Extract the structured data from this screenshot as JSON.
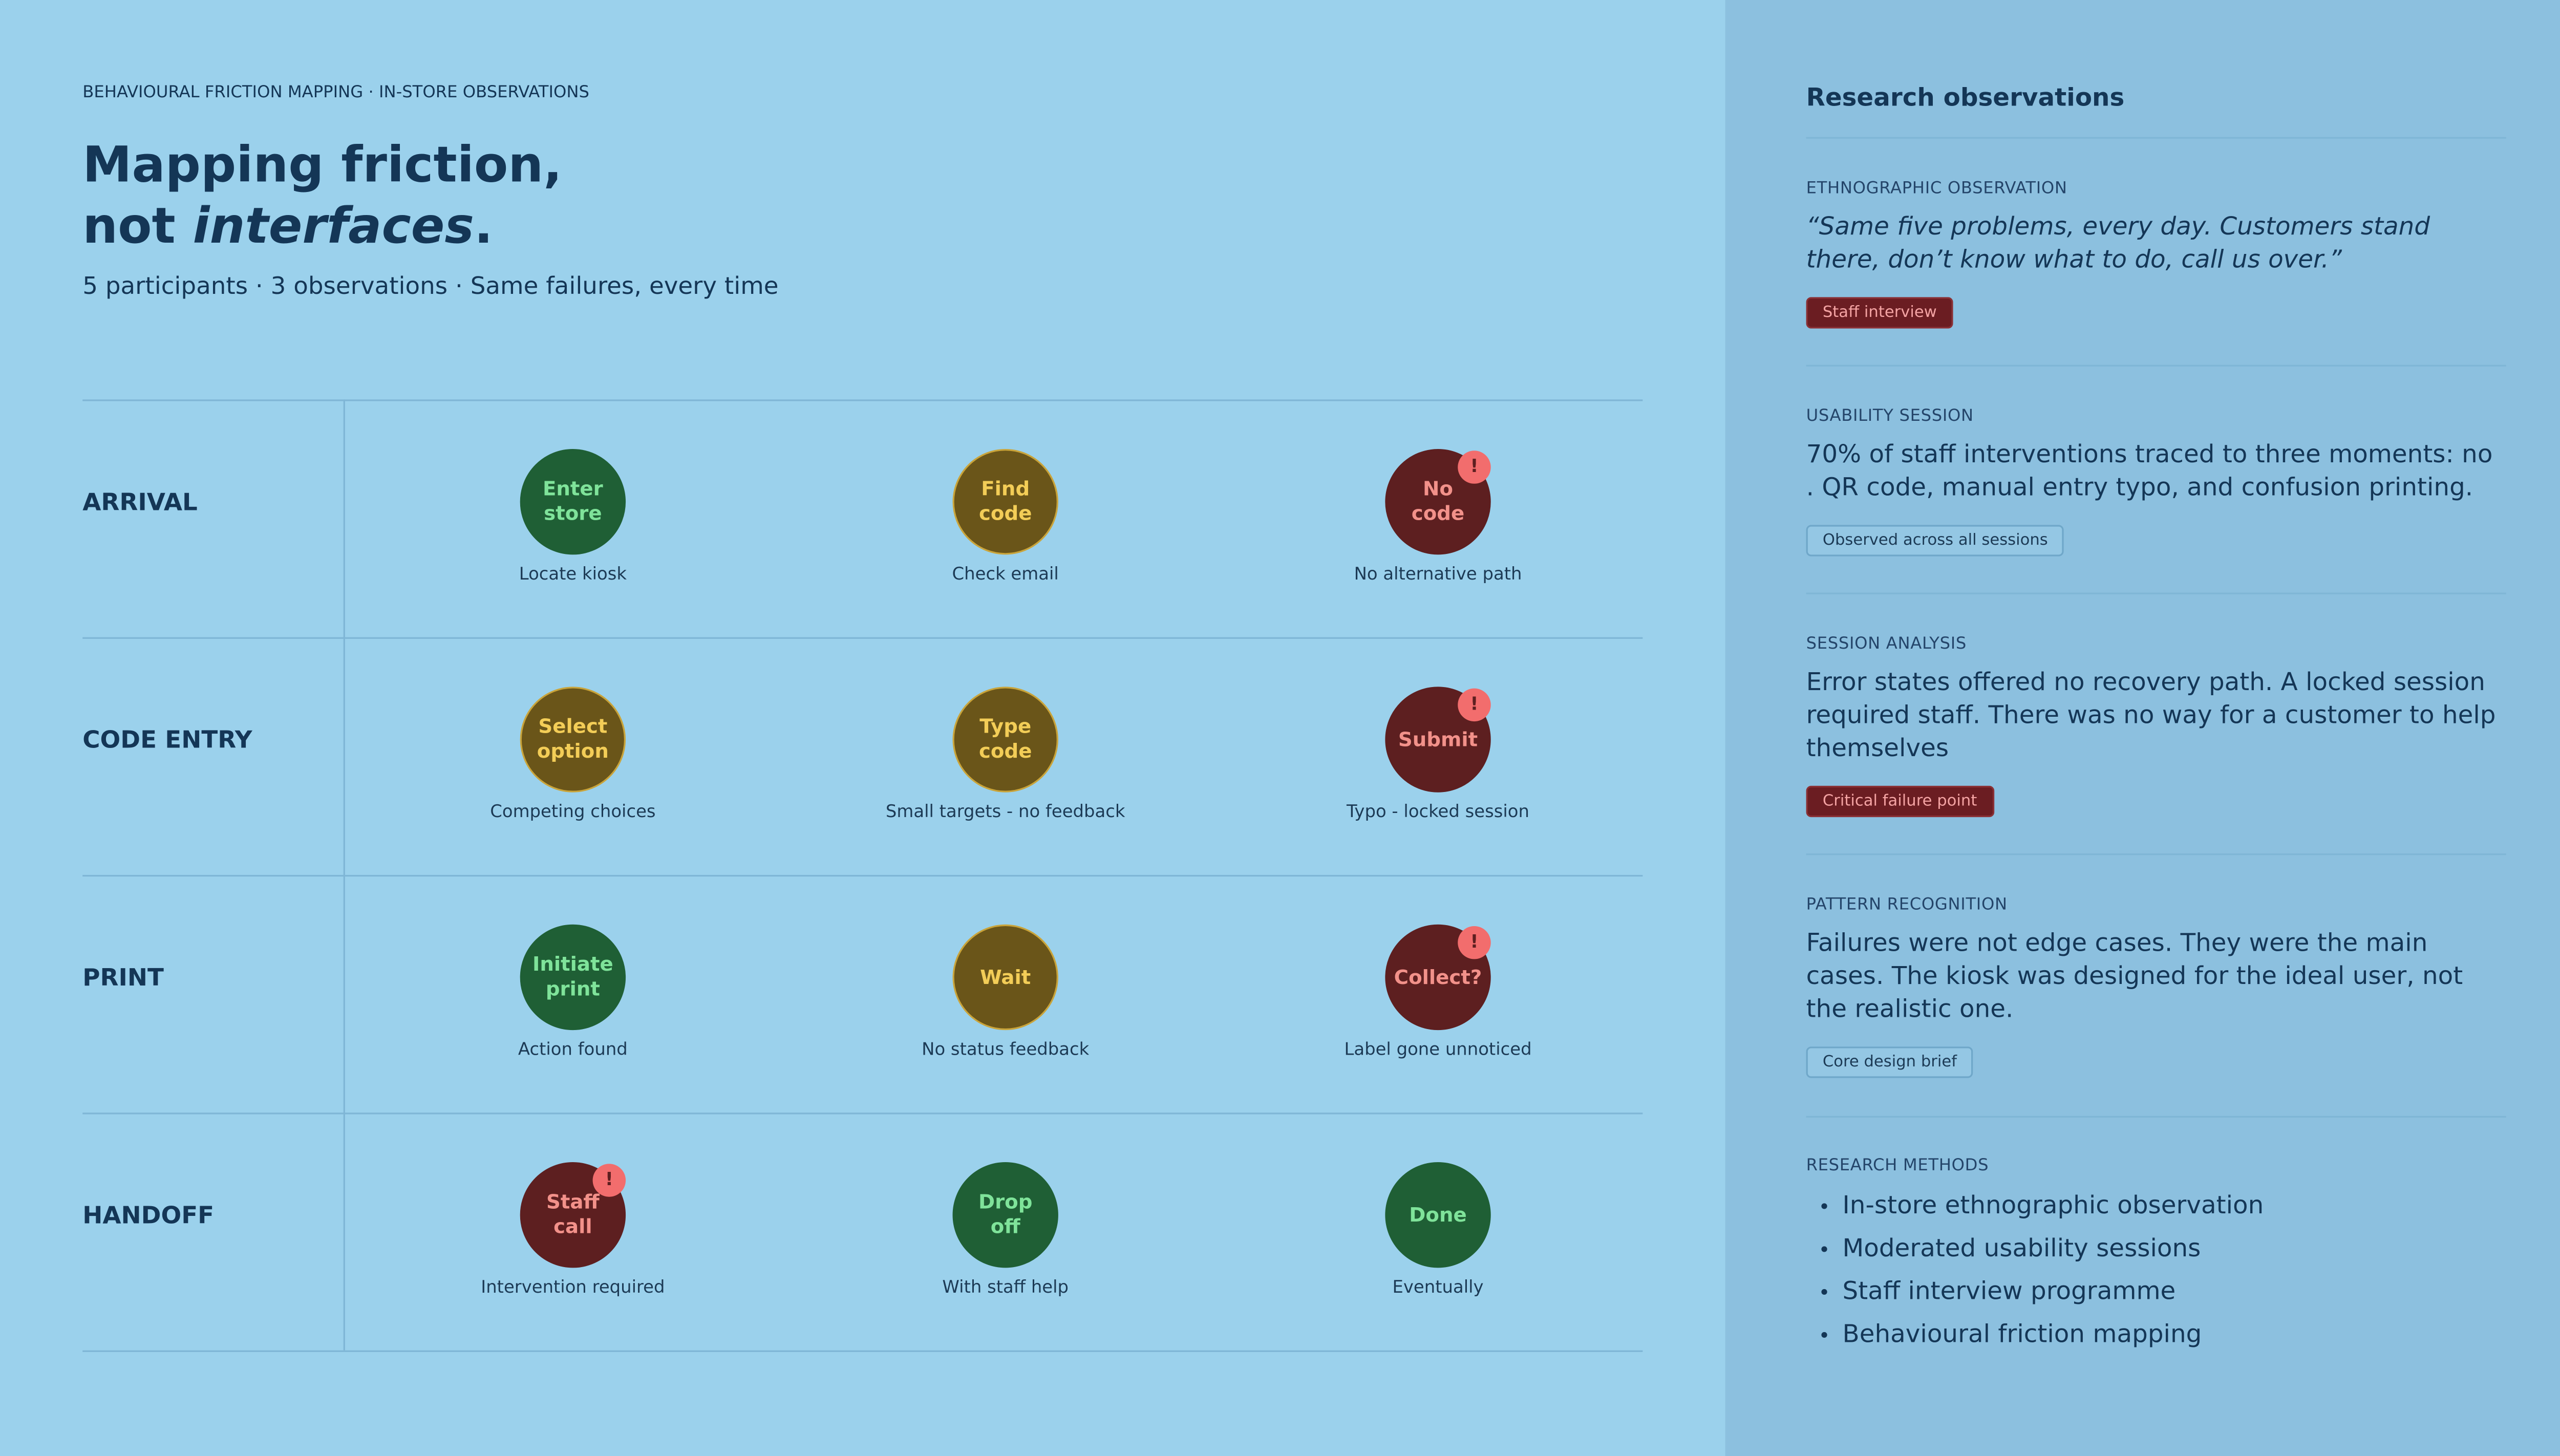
{
  "header": {
    "eyebrow": "BEHAVIOURAL FRICTION MAPPING · IN-STORE OBSERVATIONS",
    "title_line1": "Mapping friction,",
    "title_line2_start": "not ",
    "title_emphasis": "interfaces",
    "title_end": ".",
    "subtitle": "5 participants · 3 observations · Same failures, every time"
  },
  "rows": [
    {
      "label": "ARRIVAL",
      "steps": [
        {
          "name": [
            "Enter",
            "store"
          ],
          "caption": "Locate kiosk",
          "fill": "#1f5f35",
          "ink": "#7fe39a",
          "ring": "#1f5f35"
        },
        {
          "name": [
            "Find",
            "code"
          ],
          "caption": "Check email",
          "fill": "#6a5519",
          "ink": "#f3cd57",
          "ring": "#c9a43a"
        },
        {
          "name": [
            "No",
            "code"
          ],
          "caption": "No alternative path",
          "fill": "#5d1f20",
          "ink": "#f2918a",
          "ring": "#5d1f20",
          "badge": "!"
        }
      ]
    },
    {
      "label": "CODE ENTRY",
      "steps": [
        {
          "name": [
            "Select",
            "option"
          ],
          "caption": "Competing choices",
          "fill": "#6a5519",
          "ink": "#f3cd57",
          "ring": "#c9a43a"
        },
        {
          "name": [
            "Type",
            "code"
          ],
          "caption": "Small targets - no feedback",
          "fill": "#6a5519",
          "ink": "#f3cd57",
          "ring": "#c9a43a"
        },
        {
          "name": [
            "Submit"
          ],
          "caption": "Typo - locked session",
          "fill": "#5d1f20",
          "ink": "#f2918a",
          "ring": "#5d1f20",
          "badge": "!"
        }
      ]
    },
    {
      "label": "PRINT",
      "steps": [
        {
          "name": [
            "Initiate",
            "print"
          ],
          "caption": "Action found",
          "fill": "#1f5f35",
          "ink": "#7fe39a",
          "ring": "#1f5f35"
        },
        {
          "name": [
            "Wait"
          ],
          "caption": "No status feedback",
          "fill": "#6a5519",
          "ink": "#f3cd57",
          "ring": "#c9a43a"
        },
        {
          "name": [
            "Collect?"
          ],
          "caption": "Label gone unnoticed",
          "fill": "#5d1f20",
          "ink": "#f2918a",
          "ring": "#5d1f20",
          "badge": "!"
        }
      ]
    },
    {
      "label": "HANDOFF",
      "steps": [
        {
          "name": [
            "Staff",
            "call"
          ],
          "caption": "Intervention required",
          "fill": "#5d1f20",
          "ink": "#f2918a",
          "ring": "#5d1f20",
          "badge": "!"
        },
        {
          "name": [
            "Drop",
            "off"
          ],
          "caption": "With staff help",
          "fill": "#1f5f35",
          "ink": "#7fe39a",
          "ring": "#1f5f35"
        },
        {
          "name": [
            "Done"
          ],
          "caption": "Eventually",
          "fill": "#1f5f35",
          "ink": "#7fe39a",
          "ring": "#1f5f35"
        }
      ]
    }
  ],
  "sidebar": {
    "title": "Research observations",
    "sections": [
      {
        "kicker": "ETHNOGRAPHIC OBSERVATION",
        "text": "“Same five problems, every day. Customers stand there, don’t know what to do, call us over.”",
        "italic": true,
        "tag": "Staff interview",
        "tag_filled": true
      },
      {
        "kicker": "USABILITY SESSION",
        "text": "70% of staff interventions traced to three moments: no . QR code, manual entry typo, and confusion printing.",
        "italic": false,
        "tag": "Observed across all sessions",
        "tag_filled": false
      },
      {
        "kicker": "SESSION ANALYSIS",
        "text": "Error states offered no recovery path. A locked session required staff. There was no way for a customer to help themselves",
        "italic": false,
        "tag": "Critical failure point",
        "tag_filled": true
      },
      {
        "kicker": "PATTERN RECOGNITION",
        "text": "Failures were not edge cases. They were the main cases. The kiosk was designed for the ideal user, not the realistic one.",
        "italic": false,
        "tag": "Core design brief",
        "tag_filled": false
      }
    ],
    "methods_kicker": "RESEARCH METHODS",
    "methods": [
      "In-store ethnographic observation",
      "Moderated usability sessions",
      "Staff interview programme",
      "Behavioural friction mapping"
    ]
  }
}
